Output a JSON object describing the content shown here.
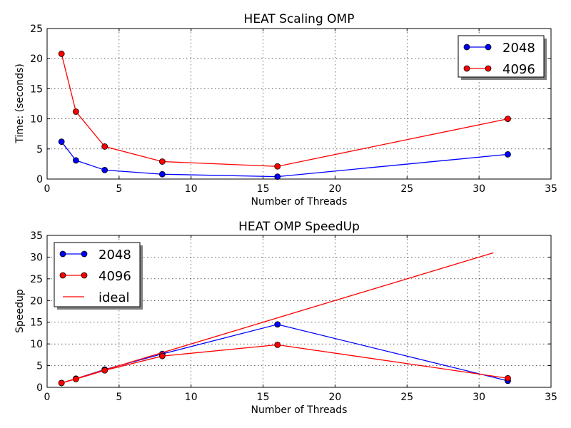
{
  "colors": {
    "series_2048": "#0000ff",
    "series_4096": "#ff0000",
    "ideal": "#ff0000"
  },
  "chart_data": [
    {
      "type": "line",
      "title": "HEAT Scaling OMP",
      "xlabel": "Number of Threads",
      "ylabel": "Time: (seconds)",
      "xlim": [
        0,
        35
      ],
      "ylim": [
        0,
        25
      ],
      "xticks": [
        0,
        5,
        10,
        15,
        20,
        25,
        30,
        35
      ],
      "yticks": [
        0,
        5,
        10,
        15,
        20,
        25
      ],
      "grid": true,
      "legend_position": "top-right",
      "series": [
        {
          "name": "2048",
          "color": "#0000ff",
          "marker": "circle",
          "x": [
            1,
            2,
            4,
            8,
            16,
            32
          ],
          "y": [
            6.2,
            3.1,
            1.5,
            0.8,
            0.4,
            4.1
          ]
        },
        {
          "name": "4096",
          "color": "#ff0000",
          "marker": "circle",
          "x": [
            1,
            2,
            4,
            8,
            16,
            32
          ],
          "y": [
            20.8,
            11.2,
            5.4,
            2.9,
            2.1,
            10.0
          ]
        }
      ]
    },
    {
      "type": "line",
      "title": "HEAT OMP SpeedUp",
      "xlabel": "Number of Threads",
      "ylabel": "Speedup",
      "xlim": [
        0,
        35
      ],
      "ylim": [
        0,
        35
      ],
      "xticks": [
        0,
        5,
        10,
        15,
        20,
        25,
        30,
        35
      ],
      "yticks": [
        0,
        5,
        10,
        15,
        20,
        25,
        30,
        35
      ],
      "grid": true,
      "legend_position": "top-left",
      "series": [
        {
          "name": "2048",
          "color": "#0000ff",
          "marker": "circle",
          "x": [
            1,
            2,
            4,
            8,
            16,
            32
          ],
          "y": [
            1.0,
            2.0,
            4.1,
            7.7,
            14.5,
            1.5
          ]
        },
        {
          "name": "4096",
          "color": "#ff0000",
          "marker": "circle",
          "x": [
            1,
            2,
            4,
            8,
            16,
            32
          ],
          "y": [
            1.0,
            1.9,
            3.9,
            7.2,
            9.8,
            2.1
          ]
        },
        {
          "name": "ideal",
          "color": "#ff0000",
          "marker": "none",
          "x": [
            1,
            31
          ],
          "y": [
            1,
            31
          ]
        }
      ]
    }
  ]
}
